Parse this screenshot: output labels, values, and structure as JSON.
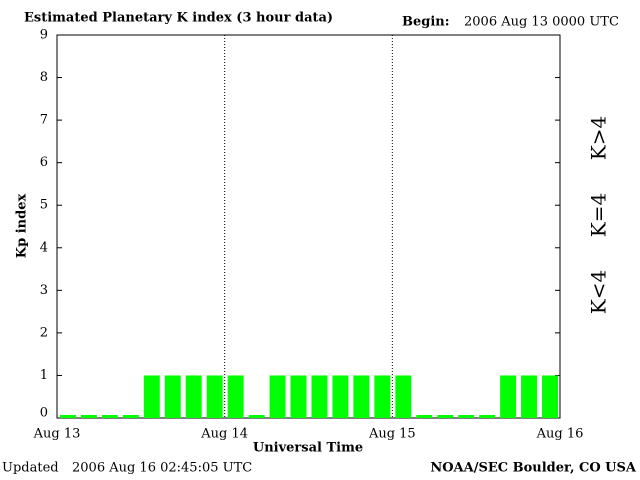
{
  "chart_data": {
    "type": "bar",
    "title": "Estimated Planetary K index (3 hour data)",
    "begin_label": "Begin:",
    "begin": "2006 Aug 13 0000 UTC",
    "y_label": "Kp index",
    "x_label": "Universal Time",
    "updated_label": "Updated",
    "updated": "2006 Aug 16 02:45:05 UTC",
    "source": "NOAA/SEC Boulder, CO USA",
    "x": [
      0,
      3,
      6,
      9,
      12,
      15,
      18,
      21,
      24,
      27,
      30,
      33,
      36,
      39,
      42,
      45,
      48,
      51,
      54,
      57,
      60,
      63,
      66,
      69
    ],
    "series": [
      {
        "name": "Kp",
        "color": "#00ff00",
        "values": [
          0,
          0,
          0,
          0,
          1,
          1,
          1,
          1,
          1,
          0,
          1,
          1,
          1,
          1,
          1,
          1,
          1,
          0,
          0,
          0,
          0,
          1,
          1,
          1
        ]
      }
    ],
    "xlim": [
      0,
      72
    ],
    "xticks": [
      {
        "value": 0,
        "label": "Aug 13"
      },
      {
        "value": 24,
        "label": "Aug 14"
      },
      {
        "value": 48,
        "label": "Aug 15"
      },
      {
        "value": 72,
        "label": "Aug 16"
      }
    ],
    "ylim": [
      0,
      9
    ],
    "yticks": [
      0,
      1,
      2,
      3,
      4,
      5,
      6,
      7,
      8,
      9
    ],
    "legend": [
      {
        "label": "K<4",
        "color": "#00ff00"
      },
      {
        "label": "K=4",
        "color": "#ffd700"
      },
      {
        "label": "K>4",
        "color": "#ff2000"
      }
    ]
  }
}
